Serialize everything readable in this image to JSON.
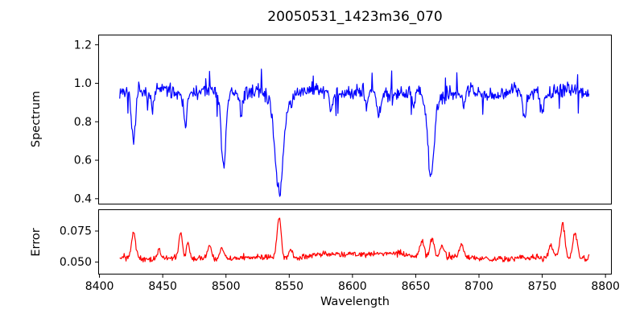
{
  "figure": {
    "title": "20050531_1423m36_070",
    "xlabel": "Wavelength",
    "background_color": "#ffffff",
    "spine_color": "#000000",
    "text_color": "#000000"
  },
  "x_axis": {
    "ticks": [
      8400,
      8450,
      8500,
      8550,
      8600,
      8650,
      8700,
      8750,
      8800
    ],
    "tick_labels": [
      "8400",
      "8450",
      "8500",
      "8550",
      "8600",
      "8650",
      "8700",
      "8750",
      "8800"
    ],
    "xlim": [
      8399,
      8805
    ]
  },
  "chart_data": [
    {
      "type": "line",
      "name": "spectrum",
      "ylabel": "Spectrum",
      "color": "#0000ff",
      "x_start": 8416,
      "x_end": 8787,
      "step": 0.5,
      "ylim": [
        0.37,
        1.253
      ],
      "yticks": [
        0.4,
        0.6,
        0.8,
        1.0,
        1.2
      ],
      "ytick_labels": [
        "0.4",
        "0.6",
        "0.8",
        "1.0",
        "1.2"
      ],
      "base": 0.955,
      "wave": {
        "amp": 0.012,
        "period": 40,
        "phase": 8400
      },
      "noise_amplitude": 0.045,
      "spike_chance": 0.05,
      "spike_amplitude": 0.115,
      "noise_seed": 7,
      "features": [
        {
          "center": 8427,
          "amp": -0.27,
          "width": 1.4
        },
        {
          "center": 8442,
          "amp": -0.09,
          "width": 1.2
        },
        {
          "center": 8468,
          "amp": -0.15,
          "width": 1.3
        },
        {
          "center": 8498,
          "amp": -0.38,
          "width": 2.0
        },
        {
          "center": 8512,
          "amp": -0.09,
          "width": 1.2
        },
        {
          "center": 8542,
          "amp": -0.46,
          "width": 2.8
        },
        {
          "center": 8542,
          "amp": -0.09,
          "width": 7
        },
        {
          "center": 8583,
          "amp": -0.09,
          "width": 1.2
        },
        {
          "center": 8611,
          "amp": -0.08,
          "width": 1.2
        },
        {
          "center": 8621,
          "amp": -0.12,
          "width": 1.3
        },
        {
          "center": 8648,
          "amp": -0.09,
          "width": 1.2
        },
        {
          "center": 8662,
          "amp": -0.37,
          "width": 2.4
        },
        {
          "center": 8662,
          "amp": -0.06,
          "width": 6
        },
        {
          "center": 8688,
          "amp": -0.09,
          "width": 1.2
        },
        {
          "center": 8736,
          "amp": -0.15,
          "width": 1.4
        },
        {
          "center": 8750,
          "amp": -0.11,
          "width": 1.2
        }
      ]
    },
    {
      "type": "line",
      "name": "error",
      "ylabel": "Error",
      "color": "#ff0000",
      "x_start": 8416,
      "x_end": 8787,
      "step": 0.5,
      "ylim": [
        0.04,
        0.0925
      ],
      "yticks": [
        0.05,
        0.075
      ],
      "ytick_labels": [
        "0.050",
        "0.075"
      ],
      "base": 0.053,
      "wave": {
        "amp": 0.0008,
        "period": 55,
        "phase": 8400
      },
      "noise_amplitude": 0.0028,
      "spike_chance": 0.05,
      "spike_amplitude": 0.003,
      "noise_seed": 3,
      "features": [
        {
          "center": 8427,
          "amp": 0.021,
          "width": 1.5
        },
        {
          "center": 8447,
          "amp": 0.007,
          "width": 1.5
        },
        {
          "center": 8464,
          "amp": 0.021,
          "width": 1.3
        },
        {
          "center": 8470,
          "amp": 0.012,
          "width": 1.2
        },
        {
          "center": 8487,
          "amp": 0.011,
          "width": 1.5
        },
        {
          "center": 8497,
          "amp": 0.01,
          "width": 1.5
        },
        {
          "center": 8542,
          "amp": 0.033,
          "width": 1.6
        },
        {
          "center": 8551,
          "amp": 0.008,
          "width": 1.5
        },
        {
          "center": 8610,
          "amp": 0.004,
          "width": 35
        },
        {
          "center": 8655,
          "amp": 0.013,
          "width": 1.8
        },
        {
          "center": 8663,
          "amp": 0.016,
          "width": 1.6
        },
        {
          "center": 8671,
          "amp": 0.01,
          "width": 1.6
        },
        {
          "center": 8686,
          "amp": 0.009,
          "width": 1.6
        },
        {
          "center": 8757,
          "amp": 0.01,
          "width": 1.8
        },
        {
          "center": 8766,
          "amp": 0.028,
          "width": 1.9
        },
        {
          "center": 8776,
          "amp": 0.021,
          "width": 1.8
        }
      ]
    }
  ]
}
